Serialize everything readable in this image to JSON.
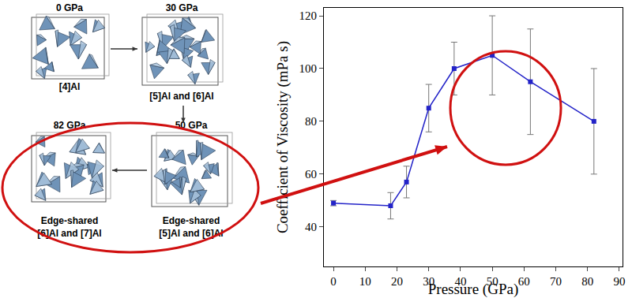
{
  "chart_data": {
    "type": "line",
    "x": [
      0,
      18,
      23,
      30,
      38,
      50,
      62,
      82
    ],
    "values": [
      49,
      48,
      57,
      85,
      100,
      105,
      95,
      80
    ],
    "errors": [
      1,
      5,
      6,
      9,
      10,
      15,
      20,
      20
    ],
    "color": "#2323c8",
    "marker": "square",
    "line_style": "solid",
    "x_label": "Pressure (GPa)",
    "y_label": "Coefficient of Viscosity (mPa s)",
    "xlim": [
      -3,
      91
    ],
    "ylim": [
      25,
      123
    ],
    "xticks": [
      0,
      10,
      20,
      30,
      40,
      50,
      60,
      70,
      80,
      90
    ],
    "yticks": [
      40,
      60,
      80,
      100,
      120
    ],
    "grid": false
  },
  "diagram": {
    "panels": [
      {
        "title": "0 GPa",
        "caption": [
          "[4]Al"
        ]
      },
      {
        "title": "30 GPa",
        "caption": [
          "[5]Al and [6]Al"
        ]
      },
      {
        "title": "50 GPa",
        "caption": [
          "Edge-shared",
          "[5]Al and [6]Al"
        ]
      },
      {
        "title": "82 GPa",
        "caption": [
          "Edge-shared",
          "[6]Al and [7]Al"
        ]
      }
    ]
  }
}
